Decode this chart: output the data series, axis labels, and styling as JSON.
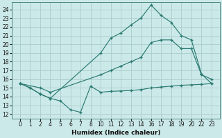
{
  "xlabel": "Humidex (Indice chaleur)",
  "bg_color": "#cce9e9",
  "grid_color": "#aacccc",
  "line_color": "#2a7a72",
  "line1_x": [
    0,
    1,
    2,
    4,
    10,
    11,
    12,
    13,
    14,
    16,
    17,
    18,
    19,
    20,
    22,
    23
  ],
  "line1_y": [
    15.5,
    15.0,
    14.3,
    13.8,
    19.0,
    20.7,
    21.3,
    22.2,
    23.0,
    24.5,
    23.3,
    22.5,
    21.0,
    20.5,
    16.6,
    15.5
  ],
  "line2_x": [
    0,
    2,
    4,
    10,
    11,
    12,
    13,
    14,
    16,
    17,
    18,
    19,
    20,
    22,
    23
  ],
  "line2_y": [
    15.5,
    15.0,
    14.5,
    16.5,
    17.0,
    17.5,
    18.0,
    18.5,
    20.2,
    20.5,
    20.5,
    19.5,
    19.5,
    16.5,
    16.0
  ],
  "line3_x": [
    0,
    1,
    2,
    4,
    5,
    6,
    7,
    8,
    10,
    11,
    12,
    13,
    14,
    16,
    17,
    18,
    19,
    20,
    22,
    23
  ],
  "line3_y": [
    15.5,
    15.0,
    14.3,
    13.8,
    13.5,
    12.5,
    12.2,
    15.2,
    14.5,
    14.6,
    14.65,
    14.7,
    14.8,
    15.0,
    15.1,
    15.2,
    15.3,
    15.35,
    15.4,
    15.5
  ],
  "xtick_labels": [
    "0",
    "1",
    "2",
    "4",
    "5",
    "6",
    "7",
    "8",
    "10",
    "11",
    "12",
    "13",
    "14",
    "16",
    "17",
    "18",
    "19",
    "20",
    "22",
    "23"
  ],
  "xtick_vals": [
    0,
    1,
    2,
    4,
    5,
    6,
    7,
    8,
    10,
    11,
    12,
    13,
    14,
    16,
    17,
    18,
    19,
    20,
    22,
    23
  ],
  "yticks": [
    12,
    13,
    14,
    15,
    16,
    17,
    18,
    19,
    20,
    21,
    22,
    23,
    24
  ],
  "ylim": [
    11.5,
    24.8
  ],
  "xlim": [
    -0.8,
    23.8
  ]
}
